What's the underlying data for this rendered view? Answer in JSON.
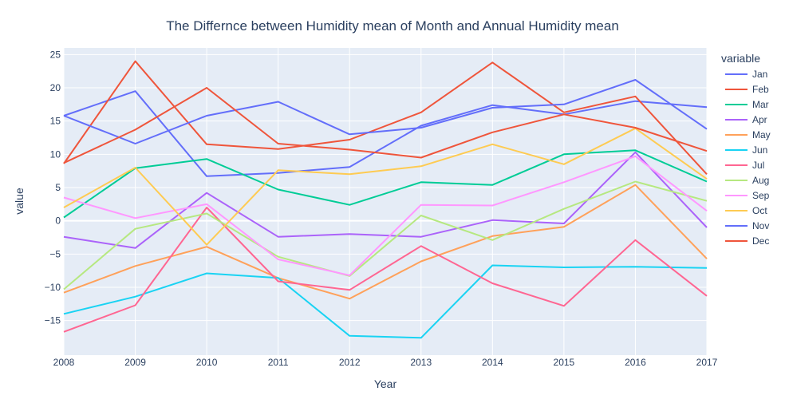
{
  "chart_data": {
    "type": "line",
    "title": "The Differnce between Humidity mean of Month and Annual Humidity mean",
    "xlabel": "Year",
    "ylabel": "value",
    "legend_title": "variable",
    "legend_position": "right",
    "x": [
      2008,
      2009,
      2010,
      2011,
      2012,
      2013,
      2014,
      2015,
      2016,
      2017
    ],
    "xlim": [
      2008,
      2017
    ],
    "ylim": [
      -20.2,
      26
    ],
    "x_ticks": [
      "2008",
      "2009",
      "2010",
      "2011",
      "2012",
      "2013",
      "2014",
      "2015",
      "2016",
      "2017"
    ],
    "y_ticks": [
      25,
      20,
      15,
      10,
      5,
      0,
      -5,
      -10,
      -15
    ],
    "y_tick_labels": [
      "25",
      "20",
      "15",
      "10",
      "5",
      "0",
      "−5",
      "−10",
      "−15"
    ],
    "grid": true,
    "plot_bgcolor": "#E5ECF6",
    "series": [
      {
        "name": "Jan",
        "color": "#636EFA",
        "values": [
          15.8,
          19.5,
          6.7,
          7.2,
          8.1,
          14.3,
          17.4,
          16.0,
          18.0,
          17.1
        ]
      },
      {
        "name": "Feb",
        "color": "#EF553B",
        "values": [
          8.6,
          24.0,
          11.5,
          10.8,
          12.2,
          16.3,
          23.8,
          16.3,
          18.7,
          7.0
        ]
      },
      {
        "name": "Mar",
        "color": "#00CC96",
        "values": [
          0.5,
          7.9,
          9.3,
          4.7,
          2.4,
          5.8,
          5.4,
          10.0,
          10.6,
          5.9
        ]
      },
      {
        "name": "Apr",
        "color": "#AB63FA",
        "values": [
          -2.4,
          -4.1,
          4.2,
          -2.4,
          -2.0,
          -2.4,
          0.1,
          -0.4,
          10.3,
          -1.0
        ]
      },
      {
        "name": "May",
        "color": "#FFA15A",
        "values": [
          -10.8,
          -6.8,
          -3.9,
          -8.6,
          -11.7,
          -6.1,
          -2.3,
          -0.9,
          5.4,
          -5.7
        ]
      },
      {
        "name": "Jun",
        "color": "#19D3F3",
        "values": [
          -14.0,
          -11.4,
          -7.9,
          -8.6,
          -17.3,
          -17.6,
          -6.7,
          -7.0,
          -6.9,
          -7.1
        ]
      },
      {
        "name": "Jul",
        "color": "#FF6692",
        "values": [
          -16.7,
          -12.7,
          2.0,
          -9.1,
          -10.4,
          -3.8,
          -9.4,
          -12.8,
          -2.9,
          -11.3
        ]
      },
      {
        "name": "Aug",
        "color": "#B6E880",
        "values": [
          -10.3,
          -1.2,
          1.1,
          -5.4,
          -8.3,
          0.8,
          -2.9,
          1.8,
          5.9,
          3.0
        ]
      },
      {
        "name": "Sep",
        "color": "#FF97FF",
        "values": [
          3.5,
          0.4,
          2.5,
          -5.8,
          -8.2,
          2.4,
          2.3,
          5.8,
          9.7,
          1.5
        ]
      },
      {
        "name": "Oct",
        "color": "#FECB52",
        "values": [
          2.0,
          8.0,
          -3.6,
          7.6,
          7.0,
          8.2,
          11.5,
          8.5,
          13.9,
          6.3
        ]
      },
      {
        "name": "Nov",
        "color": "#636EFA",
        "values": [
          15.8,
          11.6,
          15.8,
          17.9,
          13.0,
          14.0,
          17.0,
          17.5,
          21.2,
          13.8
        ]
      },
      {
        "name": "Dec",
        "color": "#EF553B",
        "values": [
          8.7,
          13.7,
          20.0,
          11.6,
          10.7,
          9.5,
          13.3,
          16.0,
          14.0,
          10.5
        ]
      }
    ]
  }
}
